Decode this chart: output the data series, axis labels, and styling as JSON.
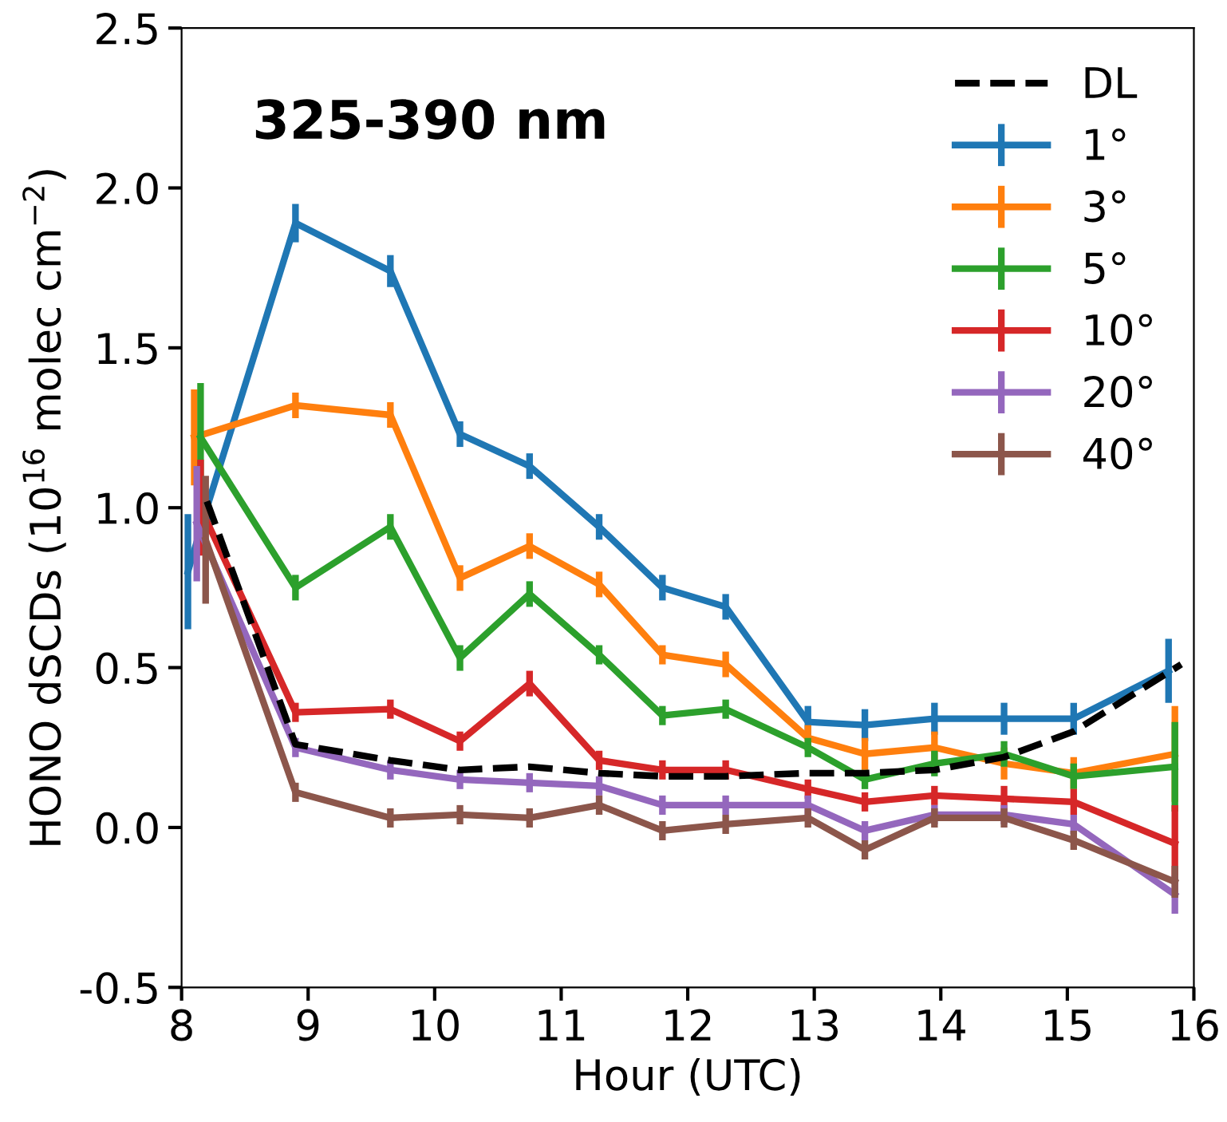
{
  "chart_data": {
    "type": "line",
    "xlabel": "Hour (UTC)",
    "ylabel": "HONO dSCDs (10$^{16}$ molec cm$^{−2}$)",
    "annotations": [
      "325-390 nm"
    ],
    "xlim": [
      8,
      16
    ],
    "ylim": [
      -0.5,
      2.5
    ],
    "xticks": [
      8,
      9,
      10,
      11,
      12,
      13,
      14,
      15,
      16
    ],
    "yticks": [
      {
        "value": -0.5,
        "label": "-0.5"
      },
      {
        "value": 0,
        "label": "0.0"
      },
      {
        "value": 0.5,
        "label": "0.5"
      },
      {
        "value": 1,
        "label": "1.0"
      },
      {
        "value": 1.5,
        "label": "1.5"
      },
      {
        "value": 2,
        "label": "2.0"
      },
      {
        "value": 2.5,
        "label": "2.5"
      }
    ],
    "grid": false,
    "legend": "top right",
    "marker": "none",
    "series": [
      {
        "name": "DL",
        "color": "#000000",
        "line_style": "dashed",
        "x": [
          8.2,
          8.9,
          9.65,
          10.2,
          10.75,
          11.3,
          11.8,
          12.3,
          12.95,
          13.4,
          13.95,
          14.5,
          15.05,
          15.9
        ],
        "values": [
          1.02,
          0.26,
          0.21,
          0.18,
          0.19,
          0.17,
          0.16,
          0.16,
          0.17,
          0.17,
          0.18,
          0.22,
          0.3,
          0.51
        ]
      },
      {
        "name": "1°",
        "color": "#1f77b4",
        "line_style": "solid",
        "x": [
          8.05,
          8.2,
          8.9,
          9.65,
          10.2,
          10.75,
          11.3,
          11.8,
          12.3,
          12.95,
          13.4,
          13.95,
          14.5,
          15.05,
          15.8
        ],
        "values": [
          0.8,
          1.0,
          1.89,
          1.74,
          1.23,
          1.13,
          0.94,
          0.75,
          0.69,
          0.33,
          0.32,
          0.34,
          0.34,
          0.34,
          0.49
        ],
        "errors": [
          0.18,
          0.05,
          0.06,
          0.05,
          0.04,
          0.04,
          0.04,
          0.04,
          0.04,
          0.05,
          0.05,
          0.05,
          0.05,
          0.05,
          0.1
        ]
      },
      {
        "name": "3°",
        "color": "#ff7f0e",
        "line_style": "solid",
        "x": [
          8.1,
          8.9,
          9.65,
          10.2,
          10.75,
          11.3,
          11.8,
          12.3,
          12.95,
          13.4,
          13.95,
          14.5,
          15.05,
          15.85
        ],
        "values": [
          1.22,
          1.32,
          1.29,
          0.78,
          0.88,
          0.76,
          0.54,
          0.51,
          0.28,
          0.23,
          0.25,
          0.2,
          0.17,
          0.23
        ],
        "errors": [
          0.15,
          0.04,
          0.04,
          0.04,
          0.04,
          0.04,
          0.03,
          0.04,
          0.04,
          0.05,
          0.05,
          0.05,
          0.05,
          0.15
        ]
      },
      {
        "name": "5°",
        "color": "#2ca02c",
        "line_style": "solid",
        "x": [
          8.15,
          8.9,
          9.65,
          10.2,
          10.75,
          11.3,
          11.8,
          12.3,
          12.95,
          13.4,
          13.95,
          14.5,
          15.05,
          15.85
        ],
        "values": [
          1.22,
          0.75,
          0.94,
          0.53,
          0.73,
          0.54,
          0.35,
          0.37,
          0.25,
          0.15,
          0.2,
          0.23,
          0.16,
          0.19
        ],
        "errors": [
          0.17,
          0.04,
          0.04,
          0.04,
          0.04,
          0.03,
          0.03,
          0.03,
          0.03,
          0.03,
          0.04,
          0.04,
          0.04,
          0.14
        ]
      },
      {
        "name": "10°",
        "color": "#d62728",
        "line_style": "solid",
        "x": [
          8.15,
          8.9,
          9.65,
          10.2,
          10.75,
          11.3,
          11.8,
          12.3,
          12.95,
          13.4,
          13.95,
          14.5,
          15.05,
          15.85
        ],
        "values": [
          1.0,
          0.36,
          0.37,
          0.27,
          0.45,
          0.21,
          0.18,
          0.18,
          0.12,
          0.08,
          0.1,
          0.09,
          0.08,
          -0.05
        ],
        "errors": [
          0.15,
          0.03,
          0.03,
          0.03,
          0.04,
          0.03,
          0.03,
          0.03,
          0.03,
          0.03,
          0.03,
          0.04,
          0.04,
          0.12
        ]
      },
      {
        "name": "20°",
        "color": "#9467bd",
        "line_style": "solid",
        "x": [
          8.12,
          8.9,
          9.65,
          10.2,
          10.75,
          11.3,
          11.8,
          12.3,
          12.95,
          13.4,
          13.95,
          14.5,
          15.05,
          15.85
        ],
        "values": [
          0.95,
          0.25,
          0.18,
          0.15,
          0.14,
          0.13,
          0.07,
          0.07,
          0.07,
          -0.01,
          0.04,
          0.04,
          0.01,
          -0.21
        ],
        "errors": [
          0.18,
          0.03,
          0.03,
          0.03,
          0.03,
          0.03,
          0.03,
          0.03,
          0.03,
          0.03,
          0.03,
          0.03,
          0.03,
          0.06
        ]
      },
      {
        "name": "40°",
        "color": "#8c564b",
        "line_style": "solid",
        "x": [
          8.19,
          8.9,
          9.65,
          10.2,
          10.75,
          11.3,
          11.8,
          12.3,
          12.95,
          13.4,
          13.95,
          14.5,
          15.05,
          15.85
        ],
        "values": [
          0.9,
          0.11,
          0.03,
          0.04,
          0.03,
          0.07,
          -0.01,
          0.01,
          0.03,
          -0.07,
          0.03,
          0.03,
          -0.04,
          -0.17
        ],
        "errors": [
          0.2,
          0.03,
          0.03,
          0.03,
          0.03,
          0.03,
          0.03,
          0.03,
          0.03,
          0.03,
          0.03,
          0.03,
          0.03,
          0.05
        ]
      }
    ]
  }
}
